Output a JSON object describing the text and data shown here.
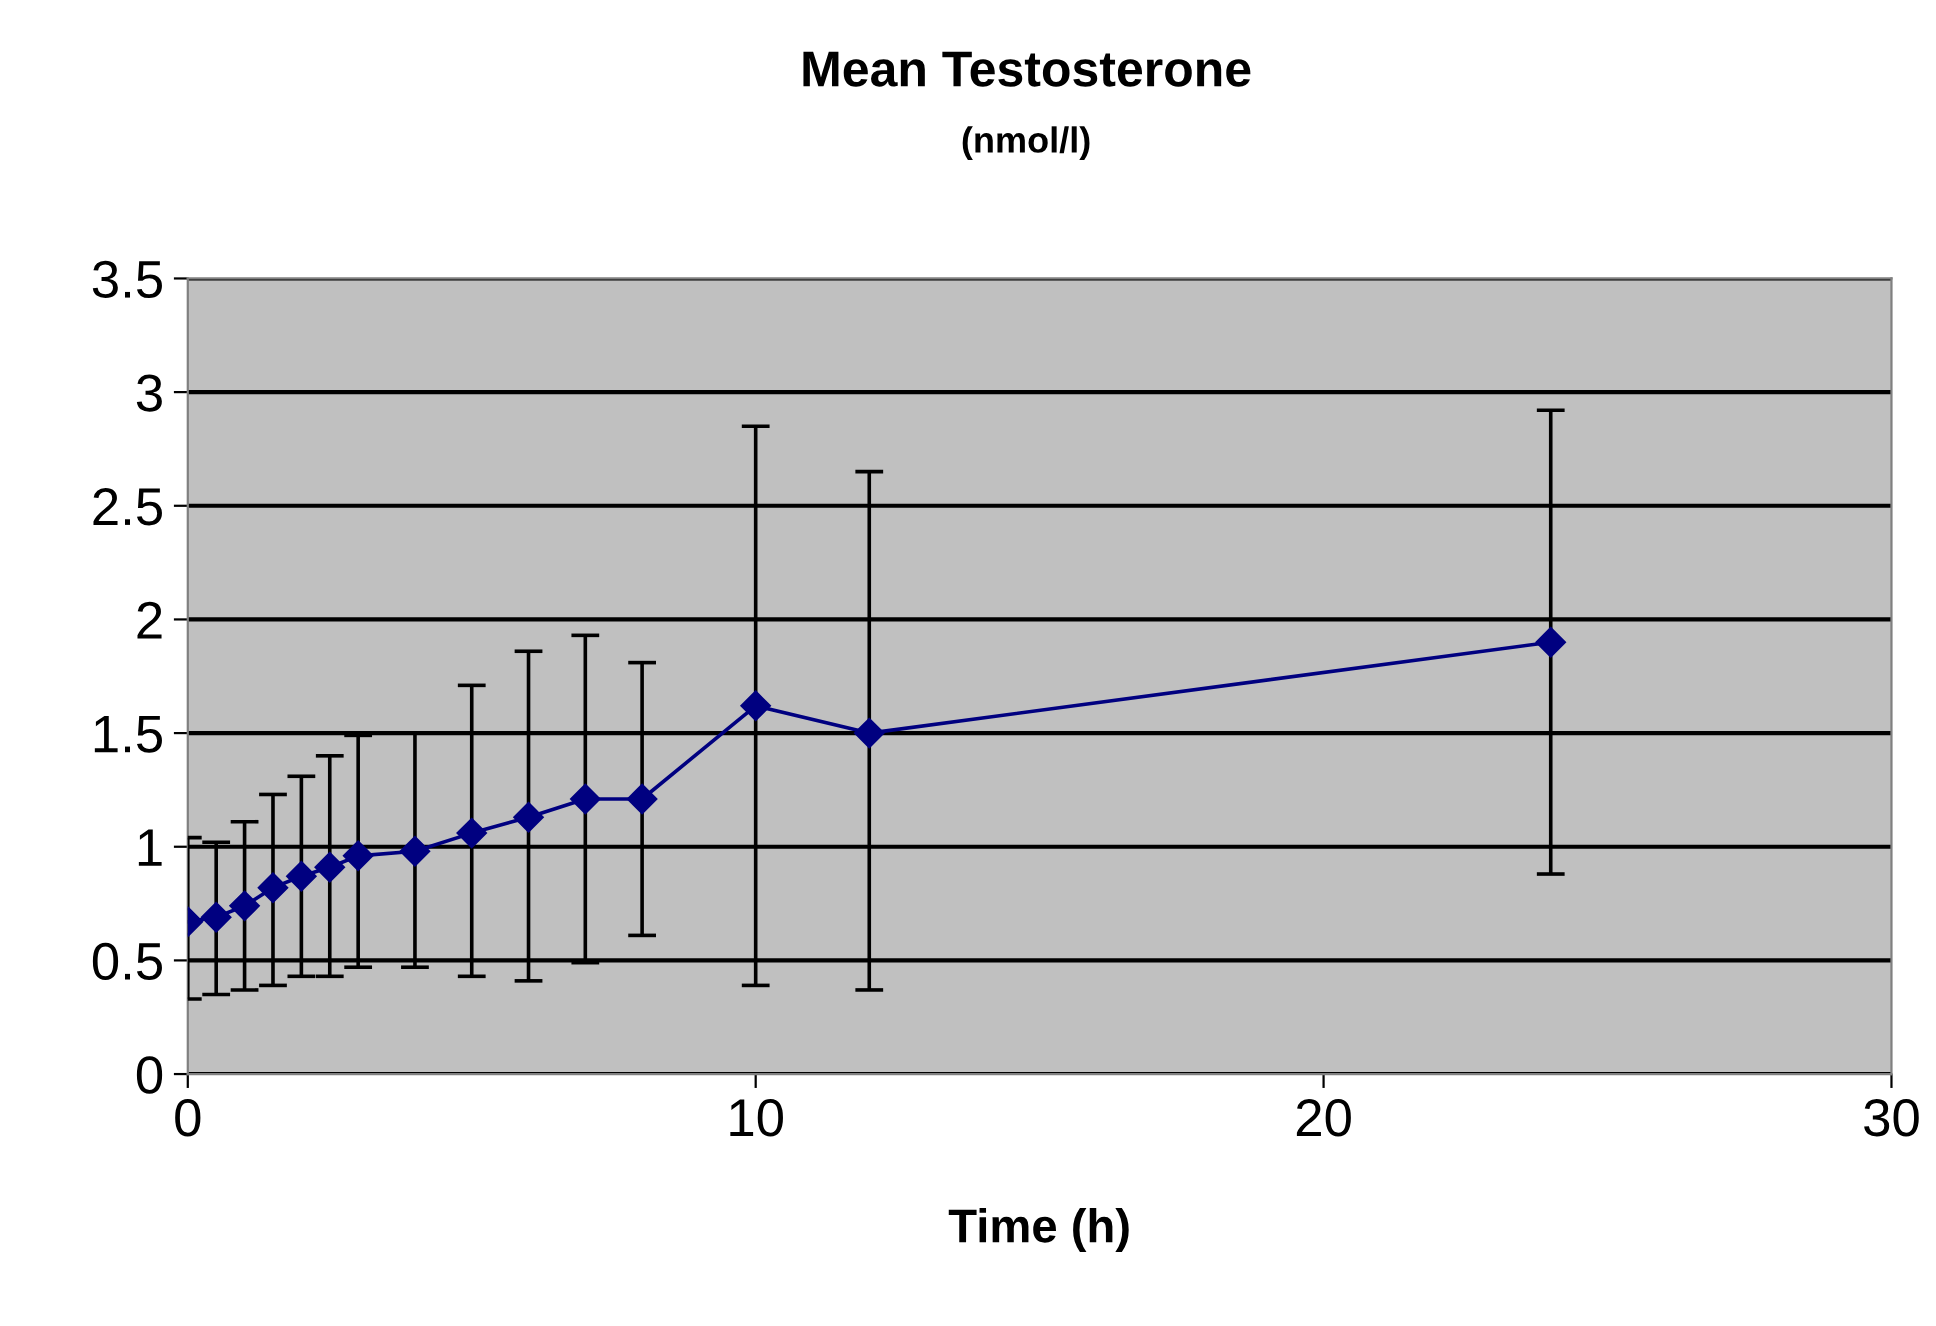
{
  "chart_data": {
    "type": "line",
    "title": "Mean Testosterone",
    "subtitle": "(nmol/l)",
    "xlabel": "Time (h)",
    "x": [
      0,
      0.5,
      1,
      1.5,
      2,
      2.5,
      3,
      4,
      5,
      6,
      7,
      8,
      10,
      12,
      24
    ],
    "series": [
      {
        "color": "#000080",
        "values": [
          0.67,
          0.69,
          0.74,
          0.82,
          0.87,
          0.91,
          0.96,
          0.98,
          1.06,
          1.13,
          1.21,
          1.21,
          1.62,
          1.5,
          1.9
        ],
        "errors": [
          [
            0.33,
            1.04
          ],
          [
            0.35,
            1.02
          ],
          [
            0.37,
            1.11
          ],
          [
            0.39,
            1.23
          ],
          [
            0.43,
            1.31
          ],
          [
            0.43,
            1.4
          ],
          [
            0.47,
            1.49
          ],
          [
            0.47,
            1.5
          ],
          [
            0.43,
            1.71
          ],
          [
            0.41,
            1.86
          ],
          [
            0.49,
            1.93
          ],
          [
            0.61,
            1.81
          ],
          [
            0.39,
            2.85
          ],
          [
            0.37,
            2.65
          ],
          [
            0.88,
            2.92
          ]
        ]
      }
    ],
    "xlim": [
      0,
      30
    ],
    "xticks": [
      0,
      10,
      20,
      30
    ],
    "ylim": [
      0,
      3.5
    ],
    "yticks": [
      0,
      0.5,
      1,
      1.5,
      2,
      2.5,
      3,
      3.5
    ],
    "grid": "y",
    "marker": "diamond",
    "line_style": "solid",
    "legend": false
  }
}
